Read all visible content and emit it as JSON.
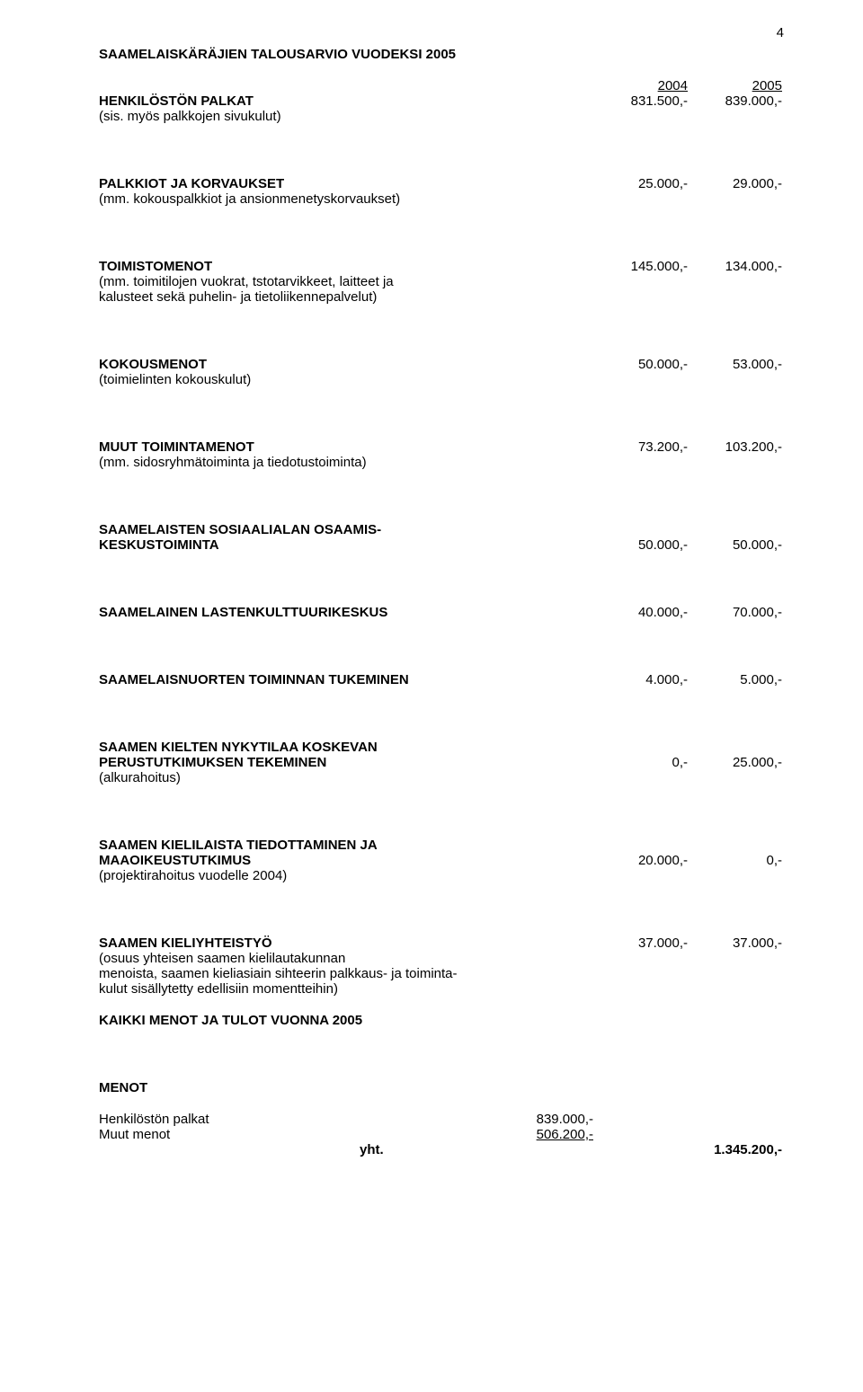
{
  "page_number": "4",
  "title": "SAAMELAISKÄRÄJIEN TALOUSARVIO VUODEKSI 2005",
  "year_heads": {
    "a": "2004",
    "b": "2005"
  },
  "items": [
    {
      "label_bold": "HENKILÖSTÖN PALKAT",
      "sub": "(sis. myös palkkojen sivukulut)",
      "a": "831.500,-",
      "b": "839.000,-",
      "gap_after": "large"
    },
    {
      "label_bold": "PALKKIOT JA KORVAUKSET",
      "sub": "(mm. kokouspalkkiot ja ansionmenetyskorvaukset)",
      "a": "25.000,-",
      "b": "29.000,-",
      "gap_after": "large"
    },
    {
      "label_bold": "TOIMISTOMENOT",
      "sub": "(mm. toimitilojen vuokrat, tstotarvikkeet, laitteet ja",
      "sub2": "kalusteet sekä puhelin- ja tietoliikennepalvelut)",
      "a": "145.000,-",
      "b": "134.000,-",
      "gap_after": "large"
    },
    {
      "label_bold": "KOKOUSMENOT",
      "sub": "(toimielinten kokouskulut)",
      "a": "50.000,-",
      "b": "53.000,-",
      "gap_after": "large"
    },
    {
      "label_bold": "MUUT TOIMINTAMENOT",
      "sub": "(mm. sidosryhmätoiminta ja tiedotustoiminta)",
      "a": "73.200,-",
      "b": "103.200,-",
      "gap_after": "large"
    },
    {
      "label_bold": "SAAMELAISTEN  SOSIAALIALAN OSAAMIS-",
      "label_bold2": "KESKUSTOIMINTA",
      "a": "50.000,-",
      "b": "50.000,-",
      "gap_after": "large"
    },
    {
      "label_bold": "SAAMELAINEN LASTENKULTTUURIKESKUS",
      "a": "40.000,-",
      "b": "70.000,-",
      "gap_after": "large"
    },
    {
      "label_bold": "SAAMELAISNUORTEN TOIMINNAN TUKEMINEN",
      "a": "4.000,-",
      "b": "5.000,-",
      "gap_after": "large"
    },
    {
      "label_bold": "SAAMEN KIELTEN NYKYTILAA KOSKEVAN",
      "label_bold2": "PERUSTUTKIMUKSEN TEKEMINEN",
      "sub": "(alkurahoitus)",
      "a": "0,-",
      "b": "25.000,-",
      "gap_after": "large"
    },
    {
      "label_bold": "SAAMEN KIELILAISTA TIEDOTTAMINEN JA",
      "label_bold2": "MAAOIKEUSTUTKIMUS",
      "sub": "(projektirahoitus vuodelle 2004)",
      "a": "20.000,-",
      "b": "0,-",
      "gap_after": "large"
    },
    {
      "label_bold": "SAAMEN KIELIYHTEISTYÖ",
      "sub": "(osuus yhteisen saamen kielilautakunnan",
      "sub2": "menoista, saamen kieliasiain sihteerin palkkaus- ja toiminta-",
      "sub3": "kulut sisällytetty edellisiin momentteihin)",
      "a": "37.000,-",
      "b": "37.000,-",
      "gap_after": "small"
    }
  ],
  "all_heading": "KAIKKI MENOT JA TULOT VUONNA  2005",
  "menot_heading": "MENOT",
  "menot_rows": [
    {
      "label": "Henkilöstön palkat",
      "value": "839.000,-",
      "underline": false
    },
    {
      "label": "Muut menot",
      "value": "506.200,-",
      "underline": true
    }
  ],
  "total": {
    "label": "yht.",
    "value": "1.345.200,-"
  }
}
